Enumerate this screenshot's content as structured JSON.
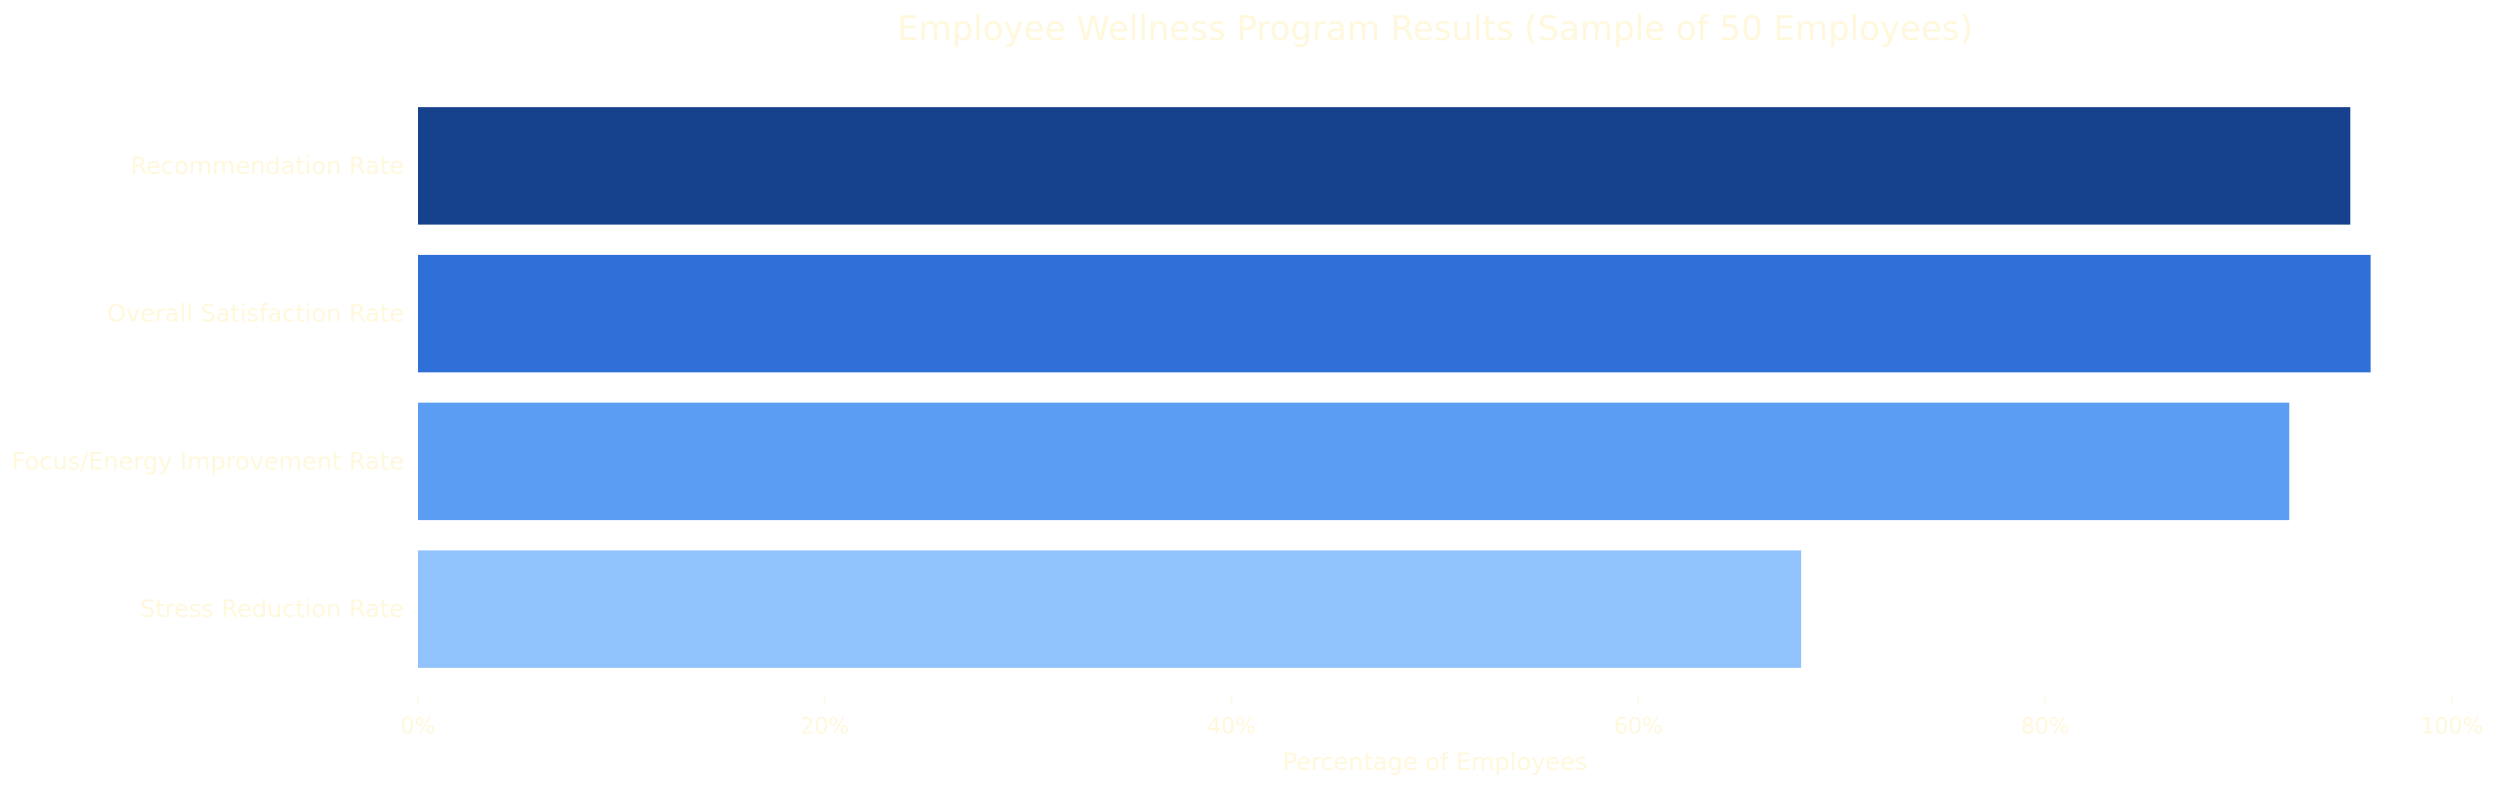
{
  "chart_data": {
    "type": "bar",
    "orientation": "horizontal",
    "title": "Employee Wellness Program Results (Sample of 50 Employees)",
    "xlabel": "Percentage of Employees",
    "ylabel": "",
    "xlim": [
      0,
      100
    ],
    "x_ticks": [
      0,
      20,
      40,
      60,
      80,
      100
    ],
    "x_tick_labels": [
      "0%",
      "20%",
      "40%",
      "60%",
      "80%",
      "100%"
    ],
    "categories": [
      "Recommendation Rate",
      "Overall Satisfaction Rate",
      "Focus/Energy Improvement Rate",
      "Stress Reduction Rate"
    ],
    "values": [
      95,
      96,
      92,
      68
    ],
    "colors": [
      "#16418c",
      "#2f70d8",
      "#5b9df3",
      "#90c3fc"
    ],
    "text_color": "#fff8dc",
    "grid": false,
    "legend": "none"
  }
}
